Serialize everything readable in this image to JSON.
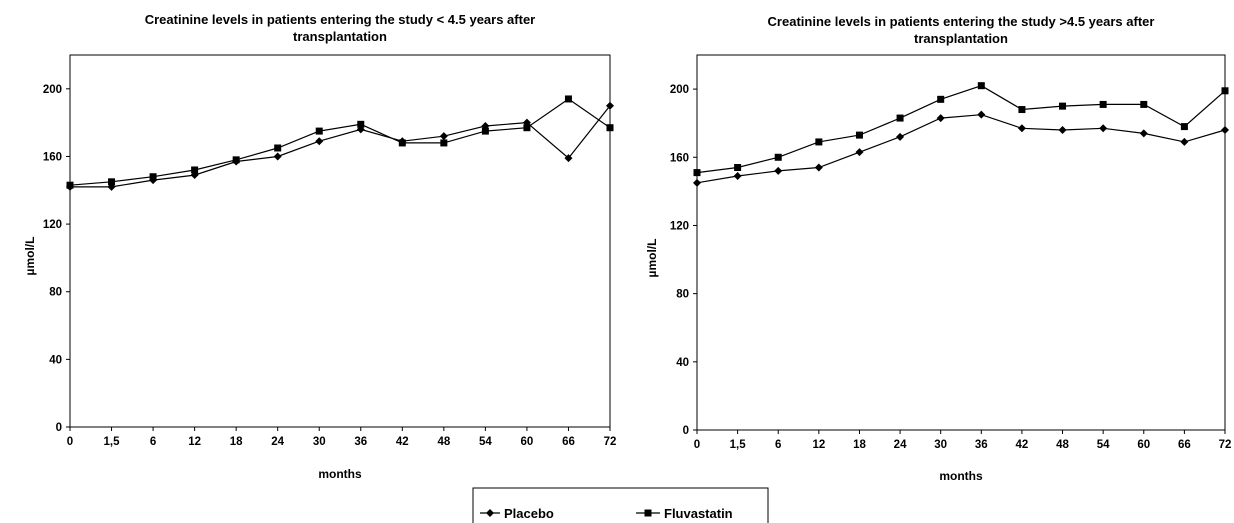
{
  "chart_data": [
    {
      "type": "line",
      "title_lines": [
        "Creatinine levels in patients entering the study < 4.5 years after",
        "transplantation"
      ],
      "xlabel": "months",
      "ylabel": "µmol/L",
      "ylim": [
        0,
        220
      ],
      "yticks": [
        "0",
        "40",
        "80",
        "120",
        "160",
        "200"
      ],
      "categories": [
        "0",
        "1,5",
        "6",
        "12",
        "18",
        "24",
        "30",
        "36",
        "42",
        "48",
        "54",
        "60",
        "66",
        "72"
      ],
      "series": [
        {
          "name": "Placebo",
          "marker": "diamond",
          "values": [
            142,
            142,
            146,
            149,
            157,
            160,
            169,
            176,
            169,
            172,
            178,
            180,
            159,
            190
          ]
        },
        {
          "name": "Fluvastatin",
          "marker": "square",
          "values": [
            143,
            145,
            148,
            152,
            158,
            165,
            175,
            179,
            168,
            168,
            175,
            177,
            194,
            177
          ]
        }
      ]
    },
    {
      "type": "line",
      "title_lines": [
        "Creatinine levels in patients entering the study  >4.5 years after",
        "transplantation"
      ],
      "xlabel": "months",
      "ylabel": "µmol/L",
      "ylim": [
        0,
        220
      ],
      "yticks": [
        "0",
        "40",
        "80",
        "120",
        "160",
        "200"
      ],
      "categories": [
        "0",
        "1,5",
        "6",
        "12",
        "18",
        "24",
        "30",
        "36",
        "42",
        "48",
        "54",
        "60",
        "66",
        "72"
      ],
      "series": [
        {
          "name": "Placebo",
          "marker": "diamond",
          "values": [
            145,
            149,
            152,
            154,
            163,
            172,
            183,
            185,
            177,
            176,
            177,
            174,
            169,
            176
          ]
        },
        {
          "name": "Fluvastatin",
          "marker": "square",
          "values": [
            151,
            154,
            160,
            169,
            173,
            183,
            194,
            202,
            188,
            190,
            191,
            191,
            178,
            199
          ]
        }
      ]
    }
  ],
  "legend": {
    "items": [
      "Placebo",
      "Fluvastatin"
    ],
    "placement": "bottom-center"
  },
  "colors": {
    "line": "#000000",
    "background": "#ffffff"
  }
}
